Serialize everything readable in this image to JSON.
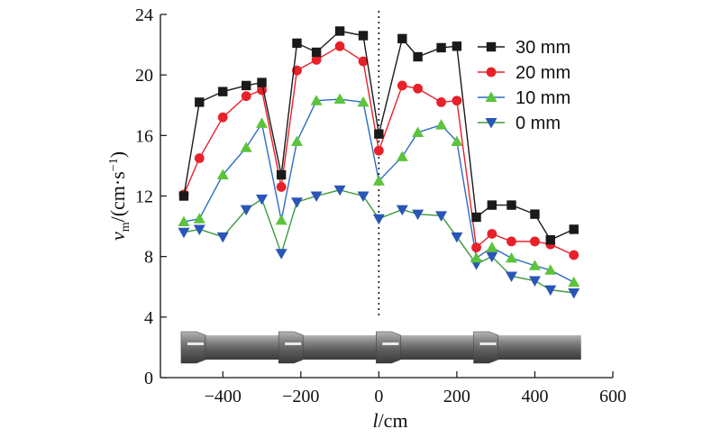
{
  "chart_data": {
    "type": "line",
    "xlabel": {
      "main": "l",
      "unit": "/cm"
    },
    "ylabel": {
      "main": "v",
      "sub": "m",
      "unit": "/(cm·s",
      "sup": "−1",
      "close": ")"
    },
    "xlim": [
      -560,
      600
    ],
    "ylim": [
      0,
      24
    ],
    "xticks": [
      -400,
      -200,
      0,
      200,
      400,
      600
    ],
    "xtick_labels": [
      "−400",
      "−200",
      "0",
      "200",
      "400",
      "600"
    ],
    "yticks": [
      0,
      4,
      8,
      12,
      16,
      20,
      24
    ],
    "ytick_labels": [
      "0",
      "4",
      "8",
      "12",
      "16",
      "20",
      "24"
    ],
    "reference_line_x": 0,
    "legend_position": "top-right",
    "series": [
      {
        "name": "30 mm",
        "color": "#1a1a1a",
        "marker": "square",
        "x": [
          -500,
          -460,
          -400,
          -340,
          -300,
          -250,
          -210,
          -160,
          -100,
          -40,
          0,
          60,
          100,
          160,
          200,
          250,
          290,
          340,
          400,
          440,
          500
        ],
        "y": [
          12.0,
          18.2,
          18.9,
          19.3,
          19.5,
          13.4,
          22.1,
          21.5,
          22.9,
          22.6,
          16.1,
          22.4,
          21.2,
          21.8,
          21.9,
          10.6,
          11.4,
          11.4,
          10.8,
          9.1,
          9.8
        ]
      },
      {
        "name": "20 mm",
        "color": "#e8202a",
        "marker": "circle",
        "x": [
          -500,
          -460,
          -400,
          -340,
          -300,
          -250,
          -210,
          -160,
          -100,
          -40,
          0,
          60,
          100,
          160,
          200,
          250,
          290,
          340,
          400,
          440,
          500
        ],
        "y": [
          12.1,
          14.5,
          17.2,
          18.6,
          19.0,
          12.6,
          20.3,
          21.0,
          21.9,
          20.9,
          15.0,
          19.3,
          19.1,
          18.2,
          18.3,
          8.6,
          9.5,
          9.0,
          9.0,
          8.8,
          8.1
        ]
      },
      {
        "name": "10 mm",
        "color": "#2b6cc4",
        "marker": "triangle-up",
        "fill": "#5cc43a",
        "x": [
          -500,
          -460,
          -400,
          -340,
          -300,
          -250,
          -210,
          -160,
          -100,
          -40,
          0,
          60,
          100,
          160,
          200,
          250,
          290,
          340,
          400,
          440,
          500
        ],
        "y": [
          10.3,
          10.5,
          13.4,
          15.2,
          16.8,
          10.4,
          15.6,
          18.3,
          18.4,
          18.2,
          13.0,
          14.6,
          16.2,
          16.7,
          15.6,
          7.9,
          8.6,
          7.9,
          7.4,
          7.1,
          6.3
        ]
      },
      {
        "name": "0 mm",
        "color": "#3a9a3a",
        "marker": "triangle-down",
        "fill": "#2a55b8",
        "x": [
          -500,
          -460,
          -400,
          -340,
          -300,
          -250,
          -210,
          -160,
          -100,
          -40,
          0,
          60,
          100,
          160,
          200,
          250,
          290,
          340,
          400,
          440,
          500
        ],
        "y": [
          9.6,
          9.8,
          9.3,
          11.1,
          11.8,
          8.2,
          11.6,
          12.0,
          12.4,
          12.0,
          10.5,
          11.1,
          10.8,
          10.7,
          9.3,
          7.5,
          8.0,
          6.7,
          6.4,
          5.8,
          5.6
        ]
      }
    ],
    "pipe_joints_x": [
      -500,
      -250,
      0,
      250
    ]
  }
}
